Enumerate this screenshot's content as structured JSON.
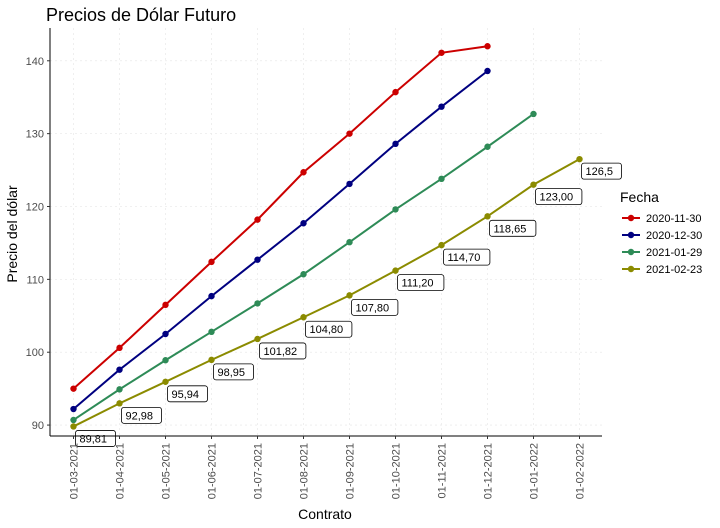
{
  "chart_data": {
    "type": "line",
    "title": "Precios de Dólar Futuro",
    "xlabel": "Contrato",
    "ylabel": "Precio del dólar",
    "legend_title": "Fecha",
    "legend_position": "right",
    "grid": true,
    "ylim": [
      88.5,
      144.5
    ],
    "yticks": [
      90,
      100,
      110,
      120,
      130,
      140
    ],
    "categories": [
      "01-03-2021",
      "01-04-2021",
      "01-05-2021",
      "01-06-2021",
      "01-07-2021",
      "01-08-2021",
      "01-09-2021",
      "01-10-2021",
      "01-11-2021",
      "01-12-2021",
      "01-01-2022",
      "01-02-2022"
    ],
    "series": [
      {
        "name": "2020-11-30",
        "color": "#cc0000",
        "values": [
          95.0,
          100.6,
          106.5,
          112.4,
          118.2,
          124.7,
          130.0,
          135.7,
          141.1,
          142.0,
          null,
          null
        ]
      },
      {
        "name": "2020-12-30",
        "color": "#000080",
        "values": [
          92.2,
          97.6,
          102.5,
          107.7,
          112.7,
          117.7,
          123.1,
          128.6,
          133.7,
          138.6,
          null,
          null
        ]
      },
      {
        "name": "2021-01-29",
        "color": "#2e8b57",
        "values": [
          90.7,
          94.9,
          98.9,
          102.8,
          106.7,
          110.7,
          115.1,
          119.6,
          123.8,
          128.2,
          132.7,
          null
        ]
      },
      {
        "name": "2021-02-23",
        "color": "#8b8b00",
        "values": [
          89.81,
          92.98,
          95.94,
          98.95,
          101.82,
          104.8,
          107.8,
          111.2,
          114.7,
          118.65,
          123.0,
          126.5
        ]
      }
    ],
    "data_labels": [
      "89,81",
      "92,98",
      "95,94",
      "98,95",
      "101,82",
      "104,80",
      "107,80",
      "111,20",
      "114,70",
      "118,65",
      "123,00",
      "126,5"
    ]
  }
}
